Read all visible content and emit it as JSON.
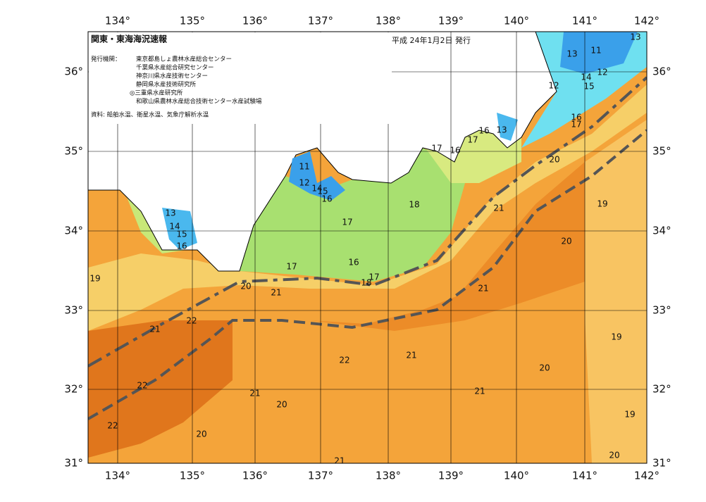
{
  "header": {
    "title": "関東・東海海況速報",
    "date": "平成 24年1月2日 発行"
  },
  "issuers": {
    "label": "発行機関：",
    "names": [
      "東京都島しょ農林水産総合センター",
      "千葉県水産総合研究センター",
      "神奈川県水産技術センター",
      "静岡県水産技術研究所",
      "◎三重県水産研究所",
      "和歌山県農林水産総合技術センター水産試験場"
    ]
  },
  "source": "資料: 船舶水温、衛星水温、気象庁解析水温",
  "axes": {
    "longitudes": [
      "134°",
      "135°",
      "136°",
      "137°",
      "138°",
      "139°",
      "140°",
      "141°",
      "142°"
    ],
    "latitudes": [
      "36°",
      "35°",
      "34°",
      "33°",
      "32°",
      "31°"
    ]
  },
  "contour_labels": [
    "13",
    "13",
    "11",
    "12",
    "14",
    "15",
    "12",
    "16",
    "17",
    "16",
    "13",
    "17",
    "17",
    "16",
    "20",
    "11",
    "12",
    "14",
    "15",
    "16",
    "18",
    "21",
    "19",
    "13",
    "14",
    "15",
    "16",
    "17",
    "20",
    "16",
    "17",
    "17",
    "18",
    "19",
    "20",
    "21",
    "21",
    "21",
    "22",
    "19",
    "22",
    "21",
    "20",
    "22",
    "21",
    "21",
    "20",
    "19",
    "22",
    "20",
    "20",
    "21"
  ]
}
